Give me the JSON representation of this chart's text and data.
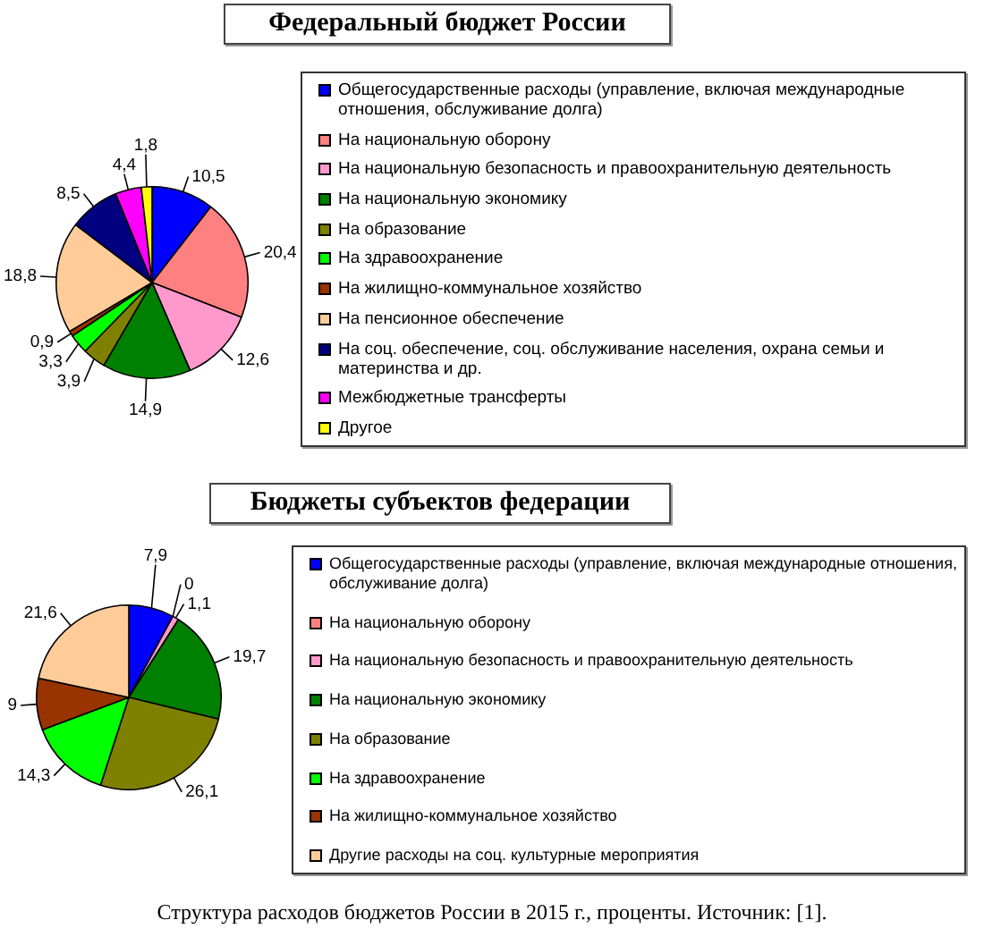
{
  "chart_data": [
    {
      "type": "pie",
      "title": "Федеральный бюджет России",
      "categories": [
        "Общегосударственные расходы (управление, включая международные отношения, обслуживание долга)",
        "На национальную оборону",
        "На национальную безопасность и правоохранительную деятельность",
        "На национальную экономику",
        "На образование",
        "На здравоохранение",
        "На жилищно-коммунальное хозяйство",
        "На пенсионное обеспечение",
        "На соц. обеспечение, соц. обслуживание населения, охрана семьи и материнства и др.",
        "Межбюджетные трансферты",
        "Другое"
      ],
      "values": [
        10.5,
        20.4,
        12.6,
        14.9,
        3.9,
        3.3,
        0.9,
        18.8,
        8.5,
        4.4,
        1.8
      ],
      "colors": [
        "#0000ff",
        "#ff8080",
        "#ff99cc",
        "#008000",
        "#808000",
        "#00ff00",
        "#993300",
        "#ffcc99",
        "#000080",
        "#ff00ff",
        "#ffff00"
      ],
      "value_labels": [
        "10,5",
        "20,4",
        "12,6",
        "14,9",
        "3,9",
        "3,3",
        "0,9",
        "18,8",
        "8,5",
        "4,4",
        "1,8"
      ],
      "legend": "right"
    },
    {
      "type": "pie",
      "title": "Бюджеты субъектов федерации",
      "categories": [
        "Общегосударственные расходы (управление, включая международные отношения, обслуживание долга)",
        "На национальную оборону",
        "На национальную безопасность и правоохранительную деятельность",
        "На национальную экономику",
        "На образование",
        "На здравоохранение",
        "На жилищно-коммунальное хозяйство",
        "Другие расходы на соц. культурные мероприятия"
      ],
      "values": [
        7.9,
        0,
        1.1,
        19.7,
        26.1,
        14.3,
        9,
        21.6
      ],
      "colors": [
        "#0000ff",
        "#ff8080",
        "#ff99cc",
        "#008000",
        "#808000",
        "#00ff00",
        "#993300",
        "#ffcc99"
      ],
      "value_labels": [
        "7,9",
        "0",
        "1,1",
        "19,7",
        "26,1",
        "14,3",
        "9",
        "21,6"
      ],
      "legend": "right",
      "annotations": [
        "Структура расходов бюджетов России в 2015 г., проценты. Источник: [1]."
      ]
    }
  ]
}
